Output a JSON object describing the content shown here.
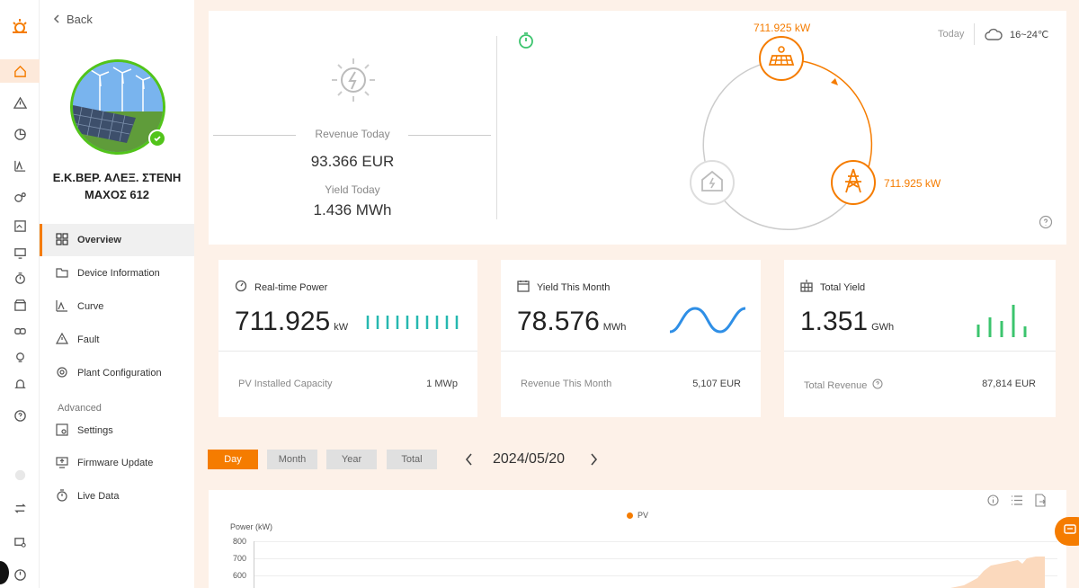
{
  "nav": {
    "back_label": "Back",
    "rail_icons": [
      "logo-icon",
      "home-icon",
      "alert-icon",
      "pie-icon",
      "curve-icon",
      "devices-icon",
      "report-icon",
      "monitor-icon",
      "timer-icon",
      "store-icon",
      "link-icon",
      "bulb-icon",
      "bell-icon",
      "help-icon",
      "moon-icon",
      "switch-icon",
      "device-settings-icon",
      "logout-icon"
    ]
  },
  "plant": {
    "name": "Ε.Κ.ΒΕΡ. ΑΛΕΞ. ΣΤΕΝΗ ΜΑΧΟΣ 612"
  },
  "menu": {
    "items": [
      {
        "label": "Overview",
        "icon": "grid-icon"
      },
      {
        "label": "Device Information",
        "icon": "folder-icon"
      },
      {
        "label": "Curve",
        "icon": "curve-icon"
      },
      {
        "label": "Fault",
        "icon": "warning-icon"
      },
      {
        "label": "Plant Configuration",
        "icon": "gear-icon"
      }
    ],
    "advanced_label": "Advanced",
    "advanced_items": [
      {
        "label": "Settings",
        "icon": "settings-icon"
      },
      {
        "label": "Firmware Update",
        "icon": "upload-icon"
      },
      {
        "label": "Live Data",
        "icon": "stopwatch-icon"
      }
    ]
  },
  "overview": {
    "revenue_today_label": "Revenue Today",
    "revenue_today_value": "93.366 EUR",
    "yield_today_label": "Yield Today",
    "yield_today_value": "1.436 MWh",
    "pv_power": "711.925 kW",
    "grid_power": "711.925 kW",
    "today_label": "Today",
    "weather": "16~24℃"
  },
  "stats": [
    {
      "title": "Real-time Power",
      "value": "711.925",
      "unit": "kW",
      "foot_label": "PV Installed Capacity",
      "foot_value": "1 MWp"
    },
    {
      "title": "Yield This Month",
      "value": "78.576",
      "unit": "MWh",
      "foot_label": "Revenue This Month",
      "foot_value": "5,107 EUR"
    },
    {
      "title": "Total Yield",
      "value": "1.351",
      "unit": "GWh",
      "foot_label": "Total Revenue",
      "foot_value": "87,814 EUR"
    }
  ],
  "period": {
    "buttons": [
      "Day",
      "Month",
      "Year",
      "Total"
    ],
    "active": "Day",
    "date": "2024/05/20"
  },
  "chart": {
    "legend": "PV",
    "ylabel": "Power (kW)",
    "ticks": [
      "800",
      "700",
      "600"
    ]
  },
  "colors": {
    "accent": "#f57c00",
    "teal": "#26b8b0",
    "blue": "#2f8fe6",
    "green": "#3cc46e"
  }
}
